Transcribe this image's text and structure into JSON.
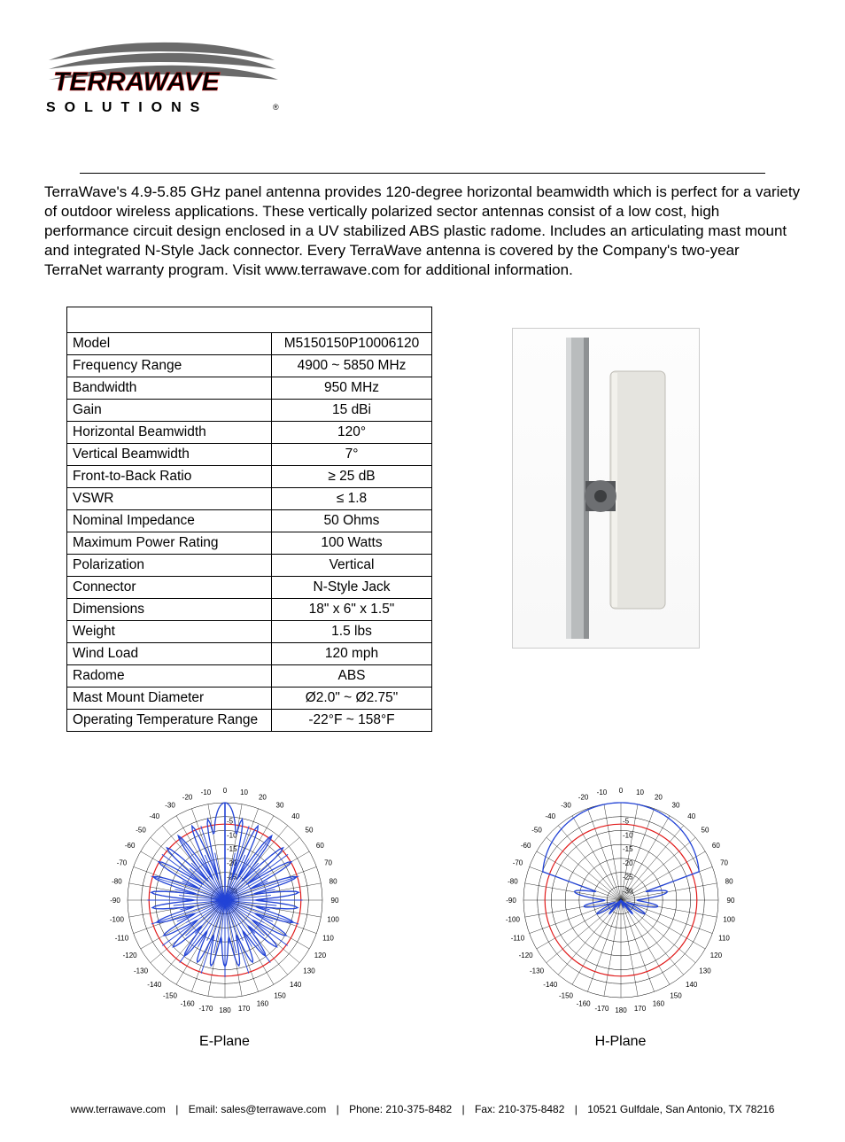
{
  "logo": {
    "brand_top": "TERRAWAVE",
    "brand_bottom": "S O L U T I O N S",
    "swoosh_color": "#6a6a6a",
    "top_text_color": "#d11a1a",
    "bottom_text_color": "#000000"
  },
  "intro_text": "TerraWave's 4.9-5.85 GHz panel antenna provides 120-degree horizontal beamwidth which is perfect for a variety of outdoor wireless applications. These vertically polarized sector antennas consist of a low cost, high performance circuit design enclosed in a UV stabilized ABS plastic radome.  Includes an articulating mast mount and integrated N-Style Jack connector.  Every TerraWave antenna is covered by the Company's two-year TerraNet warranty program.  Visit www.terrawave.com for additional information.",
  "spec_table": {
    "rows": [
      [
        "Model",
        "M5150150P10006120"
      ],
      [
        "Frequency Range",
        "4900 ~ 5850 MHz"
      ],
      [
        "Bandwidth",
        "950 MHz"
      ],
      [
        "Gain",
        "15 dBi"
      ],
      [
        "Horizontal Beamwidth",
        "120°"
      ],
      [
        "Vertical Beamwidth",
        "7°"
      ],
      [
        "Front-to-Back Ratio",
        "≥ 25 dB"
      ],
      [
        "VSWR",
        "≤ 1.8"
      ],
      [
        "Nominal Impedance",
        "50 Ohms"
      ],
      [
        "Maximum Power Rating",
        "100 Watts"
      ],
      [
        "Polarization",
        "Vertical"
      ],
      [
        "Connector",
        "N-Style Jack"
      ],
      [
        "Dimensions",
        "18\" x 6\" x 1.5\""
      ],
      [
        "Weight",
        "1.5 lbs"
      ],
      [
        "Wind Load",
        "120 mph"
      ],
      [
        "Radome",
        "ABS"
      ],
      [
        "Mast Mount Diameter",
        "Ø2.0\" ~ Ø2.75\""
      ],
      [
        "Operating Temperature Range",
        "-22°F ~ 158°F"
      ]
    ]
  },
  "product_image": {
    "mast_color": "#b9bcbd",
    "panel_color": "#e5e4df",
    "bracket_color": "#55575a"
  },
  "polar_chart": {
    "angle_labels": [
      0,
      10,
      20,
      30,
      40,
      50,
      60,
      70,
      80,
      90,
      100,
      110,
      120,
      130,
      140,
      150,
      160,
      170,
      180,
      -170,
      -160,
      -150,
      -140,
      -130,
      -120,
      -110,
      -100,
      -90,
      -80,
      -70,
      -60,
      -50,
      -40,
      -30,
      -20,
      -10
    ],
    "ring_levels_db": [
      -5,
      -10,
      -15,
      -20,
      -25,
      -30
    ],
    "grid_color": "#000000",
    "label_color": "#000000",
    "label_fontsize": 8,
    "outline_color_red": "#e11a1a",
    "trace_color_blue": "#2243d6",
    "background_color": "#ffffff"
  },
  "e_plane": {
    "caption": "E-Plane",
    "beamwidth_deg": 7,
    "pattern_note": "Narrow vertical main lobe at 0° with many thin sidelobes"
  },
  "h_plane": {
    "caption": "H-Plane",
    "beamwidth_deg": 120,
    "pattern_note": "Wide horizontal lobe spanning roughly -60° to +60°"
  },
  "footer": {
    "website": "www.terrawave.com",
    "email_label": "Email: sales@terrawave.com",
    "phone_label": "Phone: 210-375-8482",
    "fax_label": "Fax: 210-375-8482",
    "address": "10521 Gulfdale, San Antonio, TX 78216",
    "separator": "|"
  }
}
